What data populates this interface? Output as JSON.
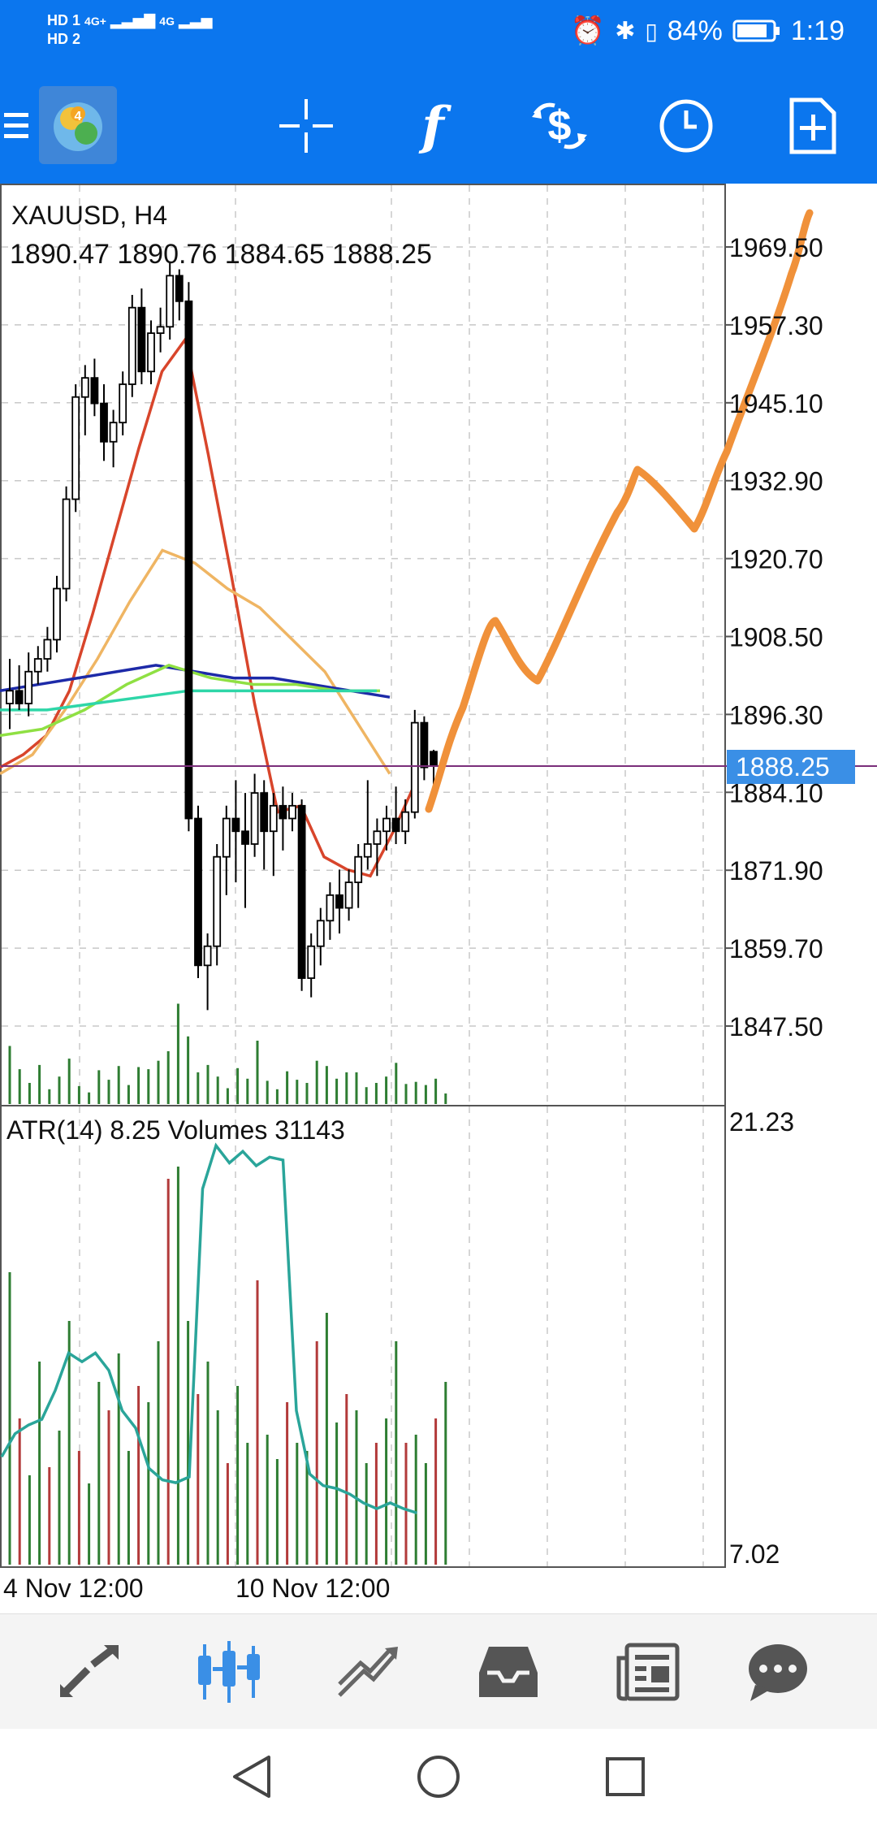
{
  "status_bar": {
    "sim1": "HD 1",
    "sim2": "HD 2",
    "net1": "4G+",
    "net2": "4G",
    "battery": "84%",
    "time": "1:19"
  },
  "toolbar": {
    "icons": [
      "menu-icon",
      "metatrader-logo",
      "crosshair-icon",
      "indicators-icon",
      "trade-icon",
      "timeframe-clock-icon",
      "new-order-icon"
    ]
  },
  "chart": {
    "symbol": "XAUUSD, H4",
    "ohlc": "1890.47 1890.76 1884.65 1888.25",
    "price_ticks": [
      "1969.50",
      "1957.30",
      "1945.10",
      "1932.90",
      "1920.70",
      "1908.50",
      "1896.30",
      "1884.10",
      "1871.90",
      "1859.70",
      "1847.50"
    ],
    "current_price": "1888.25",
    "indicator_label": "ATR(14) 8.25 Volumes 31143",
    "sub_ticks": [
      "21.23",
      "7.02"
    ],
    "time_labels": [
      "4 Nov 12:00",
      "10 Nov 12:00"
    ],
    "colors": {
      "current_line": "#7a2e7a",
      "price_tag": "#3a8fe6",
      "ma_red": "#d8452b",
      "ma_orange": "#efb563",
      "ma_blue": "#1d2aa8",
      "ma_green": "#8fe043",
      "ma_teal": "#2ed6a8",
      "atr": "#2aa59a",
      "drawing": "#f0913a"
    }
  },
  "chart_data": {
    "type": "candlestick",
    "symbol": "XAUUSD",
    "timeframe": "H4",
    "price_range": [
      1840,
      1980
    ],
    "candles": [
      {
        "o": 1898,
        "h": 1905,
        "l": 1894,
        "c": 1900
      },
      {
        "o": 1900,
        "h": 1904,
        "l": 1897,
        "c": 1898
      },
      {
        "o": 1898,
        "h": 1906,
        "l": 1896,
        "c": 1903
      },
      {
        "o": 1903,
        "h": 1907,
        "l": 1901,
        "c": 1905
      },
      {
        "o": 1905,
        "h": 1910,
        "l": 1903,
        "c": 1908
      },
      {
        "o": 1908,
        "h": 1918,
        "l": 1906,
        "c": 1916
      },
      {
        "o": 1916,
        "h": 1932,
        "l": 1914,
        "c": 1930
      },
      {
        "o": 1930,
        "h": 1948,
        "l": 1928,
        "c": 1946
      },
      {
        "o": 1946,
        "h": 1951,
        "l": 1940,
        "c": 1949
      },
      {
        "o": 1949,
        "h": 1952,
        "l": 1943,
        "c": 1945
      },
      {
        "o": 1945,
        "h": 1948,
        "l": 1936,
        "c": 1939
      },
      {
        "o": 1939,
        "h": 1944,
        "l": 1935,
        "c": 1942
      },
      {
        "o": 1942,
        "h": 1950,
        "l": 1940,
        "c": 1948
      },
      {
        "o": 1948,
        "h": 1962,
        "l": 1946,
        "c": 1960
      },
      {
        "o": 1960,
        "h": 1963,
        "l": 1948,
        "c": 1950
      },
      {
        "o": 1950,
        "h": 1958,
        "l": 1948,
        "c": 1956
      },
      {
        "o": 1956,
        "h": 1960,
        "l": 1953,
        "c": 1957
      },
      {
        "o": 1957,
        "h": 1967,
        "l": 1955,
        "c": 1965
      },
      {
        "o": 1965,
        "h": 1966,
        "l": 1958,
        "c": 1961
      },
      {
        "o": 1961,
        "h": 1964,
        "l": 1878,
        "c": 1880
      },
      {
        "o": 1880,
        "h": 1882,
        "l": 1855,
        "c": 1857
      },
      {
        "o": 1857,
        "h": 1862,
        "l": 1850,
        "c": 1860
      },
      {
        "o": 1860,
        "h": 1876,
        "l": 1857,
        "c": 1874
      },
      {
        "o": 1874,
        "h": 1882,
        "l": 1868,
        "c": 1880
      },
      {
        "o": 1880,
        "h": 1886,
        "l": 1870,
        "c": 1878
      },
      {
        "o": 1878,
        "h": 1884,
        "l": 1866,
        "c": 1876
      },
      {
        "o": 1876,
        "h": 1887,
        "l": 1874,
        "c": 1884
      },
      {
        "o": 1884,
        "h": 1886,
        "l": 1872,
        "c": 1878
      },
      {
        "o": 1878,
        "h": 1884,
        "l": 1871,
        "c": 1882
      },
      {
        "o": 1882,
        "h": 1885,
        "l": 1875,
        "c": 1880
      },
      {
        "o": 1880,
        "h": 1884,
        "l": 1878,
        "c": 1882
      },
      {
        "o": 1882,
        "h": 1883,
        "l": 1853,
        "c": 1855
      },
      {
        "o": 1855,
        "h": 1862,
        "l": 1852,
        "c": 1860
      },
      {
        "o": 1860,
        "h": 1866,
        "l": 1857,
        "c": 1864
      },
      {
        "o": 1864,
        "h": 1870,
        "l": 1861,
        "c": 1868
      },
      {
        "o": 1868,
        "h": 1872,
        "l": 1862,
        "c": 1866
      },
      {
        "o": 1866,
        "h": 1872,
        "l": 1864,
        "c": 1870
      },
      {
        "o": 1870,
        "h": 1876,
        "l": 1866,
        "c": 1874
      },
      {
        "o": 1874,
        "h": 1886,
        "l": 1872,
        "c": 1876
      },
      {
        "o": 1876,
        "h": 1880,
        "l": 1871,
        "c": 1878
      },
      {
        "o": 1878,
        "h": 1882,
        "l": 1875,
        "c": 1880
      },
      {
        "o": 1880,
        "h": 1885,
        "l": 1876,
        "c": 1878
      },
      {
        "o": 1878,
        "h": 1883,
        "l": 1876,
        "c": 1881
      },
      {
        "o": 1881,
        "h": 1897,
        "l": 1880,
        "c": 1895
      },
      {
        "o": 1895,
        "h": 1896,
        "l": 1886,
        "c": 1888
      },
      {
        "o": 1890.47,
        "h": 1890.76,
        "l": 1884.65,
        "c": 1888.25
      }
    ],
    "moving_averages": [
      {
        "color": "#d8452b",
        "values": [
          1888,
          1890,
          1893,
          1900,
          1912,
          1925,
          1938,
          1950,
          1955,
          1937,
          1918,
          1898,
          1881,
          1882,
          1874,
          1872,
          1871,
          1878,
          1886
        ]
      },
      {
        "color": "#efb563",
        "values": [
          1887,
          1890,
          1897,
          1905,
          1914,
          1922,
          1920,
          1916,
          1913,
          1908,
          1903,
          1895,
          1887
        ]
      },
      {
        "color": "#1d2aa8",
        "values": [
          1900,
          1901,
          1902,
          1903,
          1904,
          1903,
          1902,
          1902,
          1901,
          1900,
          1899
        ]
      },
      {
        "color": "#8fe043",
        "values": [
          1893,
          1894,
          1897,
          1901,
          1904,
          1902,
          1901,
          1901,
          1900,
          1900
        ]
      },
      {
        "color": "#2ed6a8",
        "values": [
          1897,
          1897,
          1898,
          1899,
          1900,
          1900,
          1900,
          1900,
          1900
        ]
      }
    ],
    "atr_values": [
      10.2,
      11,
      11.3,
      11.5,
      12.5,
      13.8,
      13.5,
      13.8,
      13.2,
      11.8,
      11.2,
      9.8,
      9.4,
      9.3,
      9.5,
      19.5,
      21,
      20.4,
      20.8,
      20.3,
      20.6,
      20.5,
      11.8,
      9.6,
      9.2,
      9.1,
      8.9,
      8.6,
      8.4,
      8.6,
      8.4,
      8.25
    ],
    "volumes": [
      0.55,
      0.33,
      0.2,
      0.37,
      0.14,
      0.26,
      0.43,
      0.17,
      0.11,
      0.32,
      0.23,
      0.36,
      0.18,
      0.35,
      0.33,
      0.41,
      0.5,
      0.95,
      0.64,
      0.3,
      0.37,
      0.26,
      0.15,
      0.34,
      0.24,
      0.6,
      0.22,
      0.14,
      0.31,
      0.23,
      0.2,
      0.41,
      0.36,
      0.24,
      0.3,
      0.3,
      0.16,
      0.2,
      0.26,
      0.39,
      0.19,
      0.21,
      0.18,
      0.24,
      0.1
    ]
  }
}
